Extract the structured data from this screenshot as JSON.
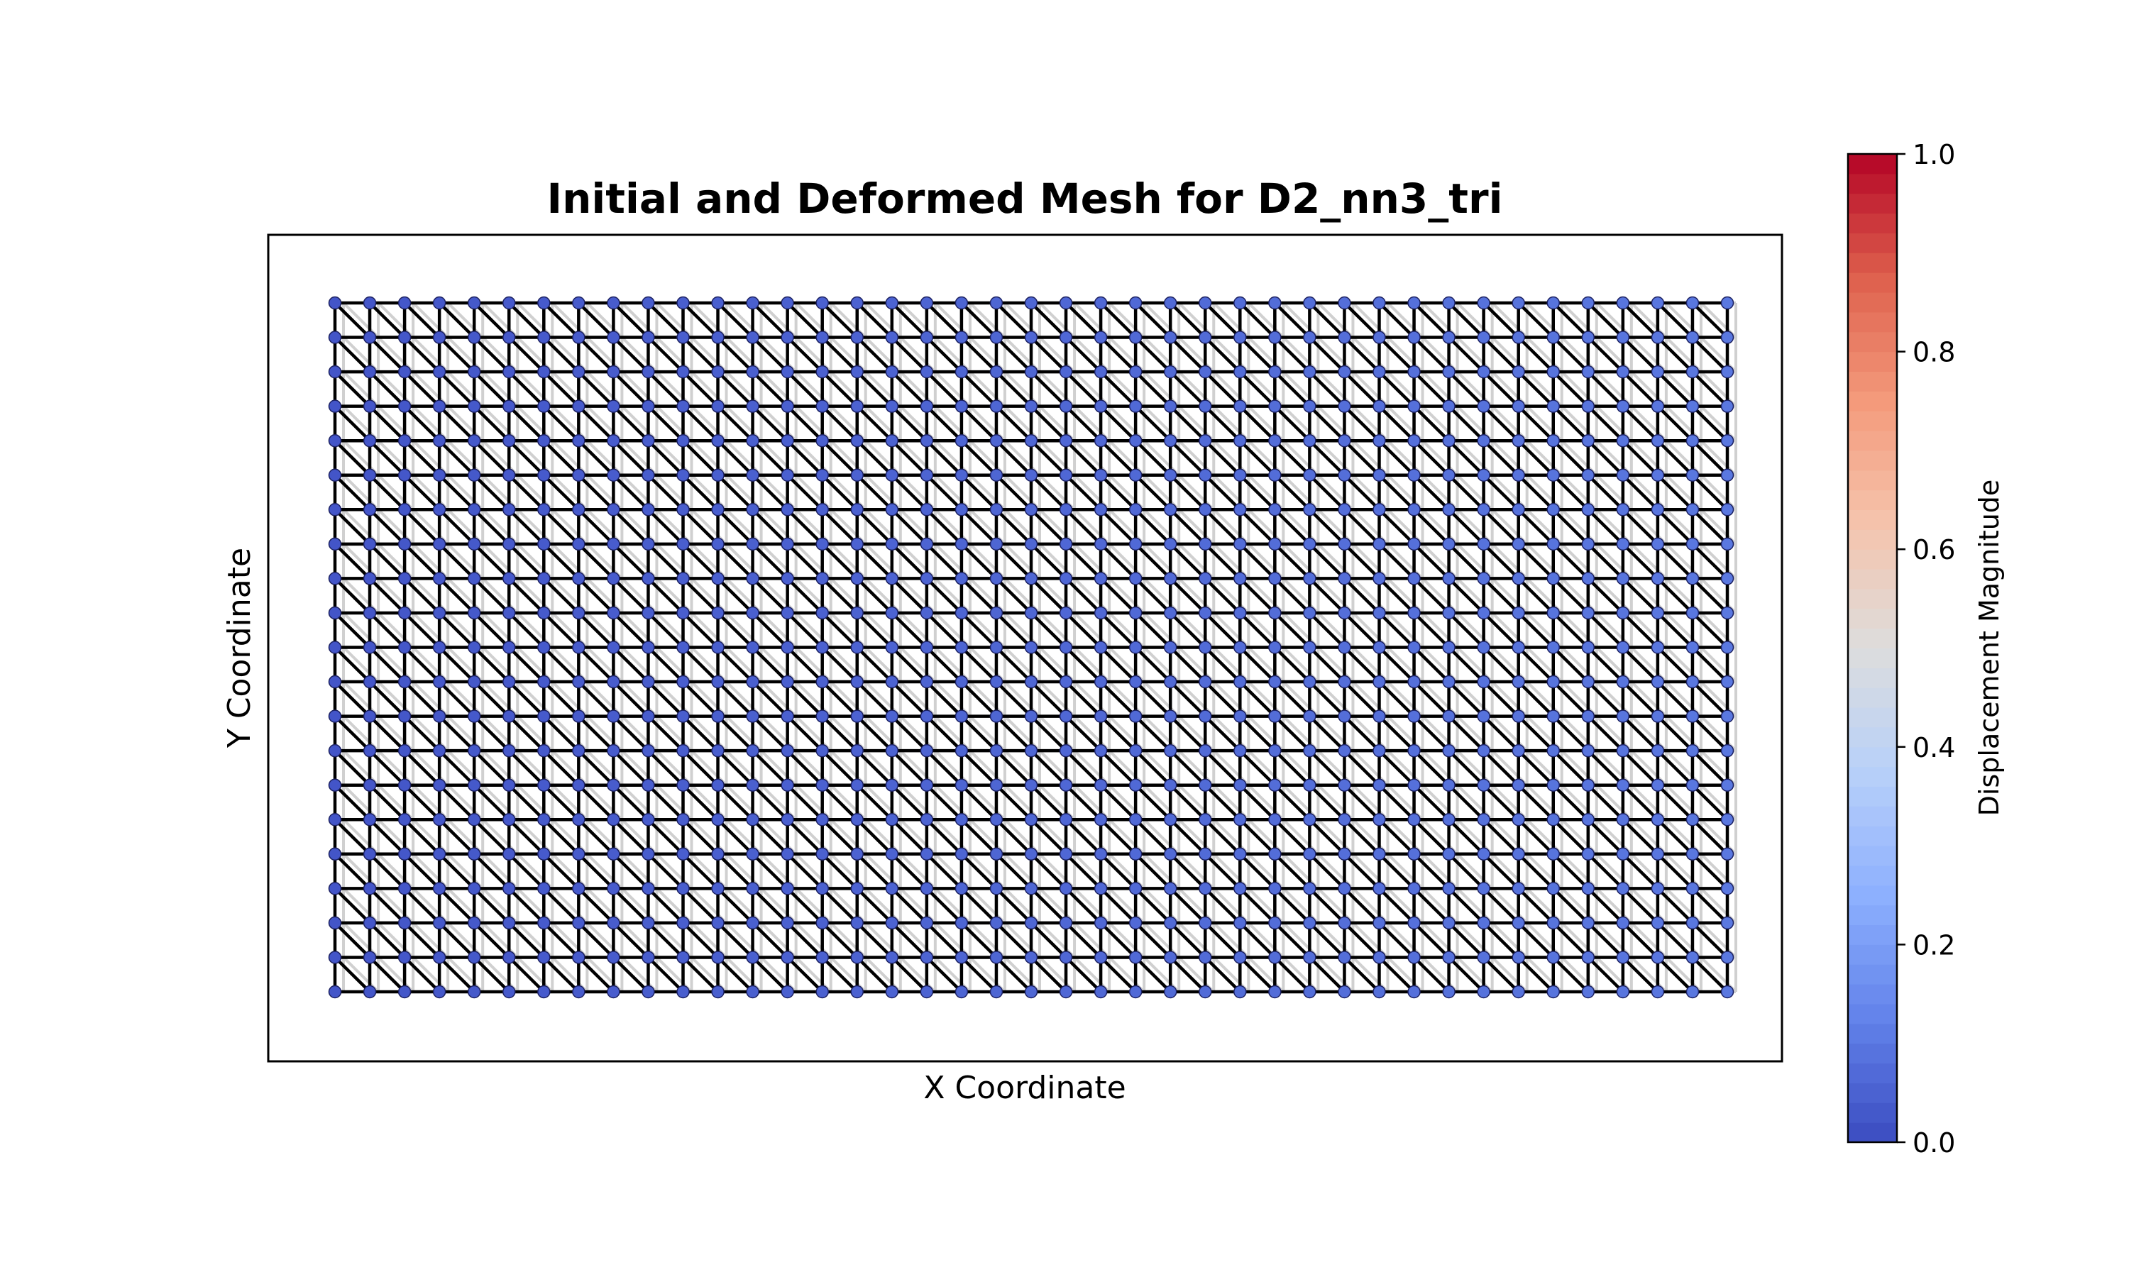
{
  "chart_data": {
    "type": "mesh",
    "title": "Initial and Deformed Mesh for D2_nn3_tri",
    "xlabel": "X Coordinate",
    "ylabel": "Y Coordinate",
    "x_ticks_visible": false,
    "y_ticks_visible": false,
    "mesh": {
      "element_type": "nn3_tri",
      "nodes_x": 41,
      "nodes_y": 21,
      "x_range": [
        0,
        40
      ],
      "y_range": [
        0,
        20
      ],
      "diagonal": "top-left to bottom-right",
      "initial_mesh_color": "#d0d0d0",
      "deformed_mesh_color": "#000000",
      "node_color_left": "#4355c8",
      "node_color_right": "#5a78e0",
      "displacement_magnitude_range": [
        0.0,
        0.1
      ]
    },
    "colorbar": {
      "label": "Displacement Magnitude",
      "colormap": "coolwarm",
      "range": [
        0.0,
        1.0
      ],
      "ticks": [
        "0.0",
        "0.2",
        "0.4",
        "0.6",
        "0.8",
        "1.0"
      ],
      "tick_values": [
        0.0,
        0.2,
        0.4,
        0.6,
        0.8,
        1.0
      ],
      "position": "right"
    }
  }
}
